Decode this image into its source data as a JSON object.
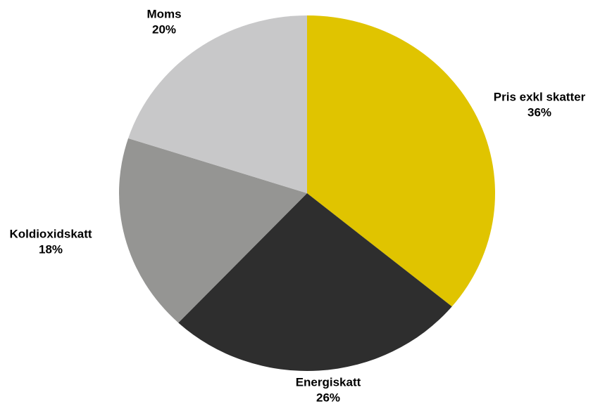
{
  "chart_data": {
    "type": "pie",
    "categories": [
      "Pris exkl skatter",
      "Energiskatt",
      "Koldioxidskatt",
      "Moms"
    ],
    "values": [
      36,
      26,
      18,
      20
    ],
    "value_labels": [
      "36%",
      "26%",
      "18%",
      "20%"
    ],
    "colors": [
      "#e0c400",
      "#2e2e2e",
      "#959593",
      "#c8c8c9"
    ]
  }
}
